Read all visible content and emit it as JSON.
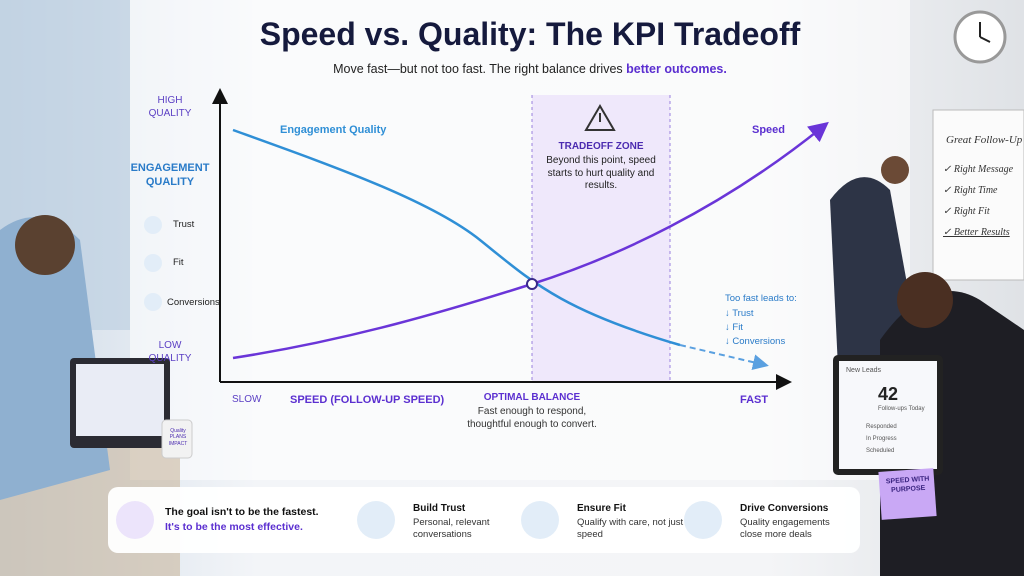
{
  "header": {
    "title": "Speed vs. Quality: The KPI Tradeoff",
    "subtitle": "Move fast—but not too fast. The right balance drives ",
    "subtitle_highlight": "better outcomes."
  },
  "y_axis": {
    "high": "HIGH QUALITY",
    "label": "ENGAGEMENT QUALITY",
    "items": [
      "Trust",
      "Fit",
      "Conversions"
    ],
    "low": "LOW QUALITY"
  },
  "curves": {
    "quality": "Engagement Quality",
    "speed": "Speed"
  },
  "zone": {
    "title": "TRADEOFF ZONE",
    "text": "Beyond this point, speed starts to hurt quality and results."
  },
  "warning": {
    "title": "Too fast leads to:",
    "items": [
      "↓ Trust",
      "↓ Fit",
      "↓ Conversions"
    ]
  },
  "x_axis": {
    "slow": "SLOW",
    "label": "SPEED (FOLLOW-UP SPEED)",
    "optimal": "OPTIMAL BALANCE",
    "optimal_text": "Fast enough to respond, thoughtful enough to convert.",
    "fast": "FAST"
  },
  "whiteboard": {
    "title": "Great Follow-Up",
    "items": [
      "✓ Right Message",
      "✓ Right Time",
      "✓ Right Fit",
      "✓ Better Results"
    ]
  },
  "monitor": {
    "title": "New Leads",
    "number": "42",
    "caption": "Follow-ups Today",
    "rows": [
      "Responded",
      "In Progress",
      "Scheduled"
    ]
  },
  "sticky": "SPEED WITH PURPOSE",
  "mug": "Quality PLANS IMPACT",
  "footer": {
    "goal": "The goal isn't to be the fastest.",
    "goal_highlight": "It's to be the most effective.",
    "cards": [
      {
        "title": "Build Trust",
        "text": "Personal, relevant conversations"
      },
      {
        "title": "Ensure Fit",
        "text": "Qualify with care, not just speed"
      },
      {
        "title": "Drive Conversions",
        "text": "Quality engagements close more deals"
      }
    ]
  }
}
